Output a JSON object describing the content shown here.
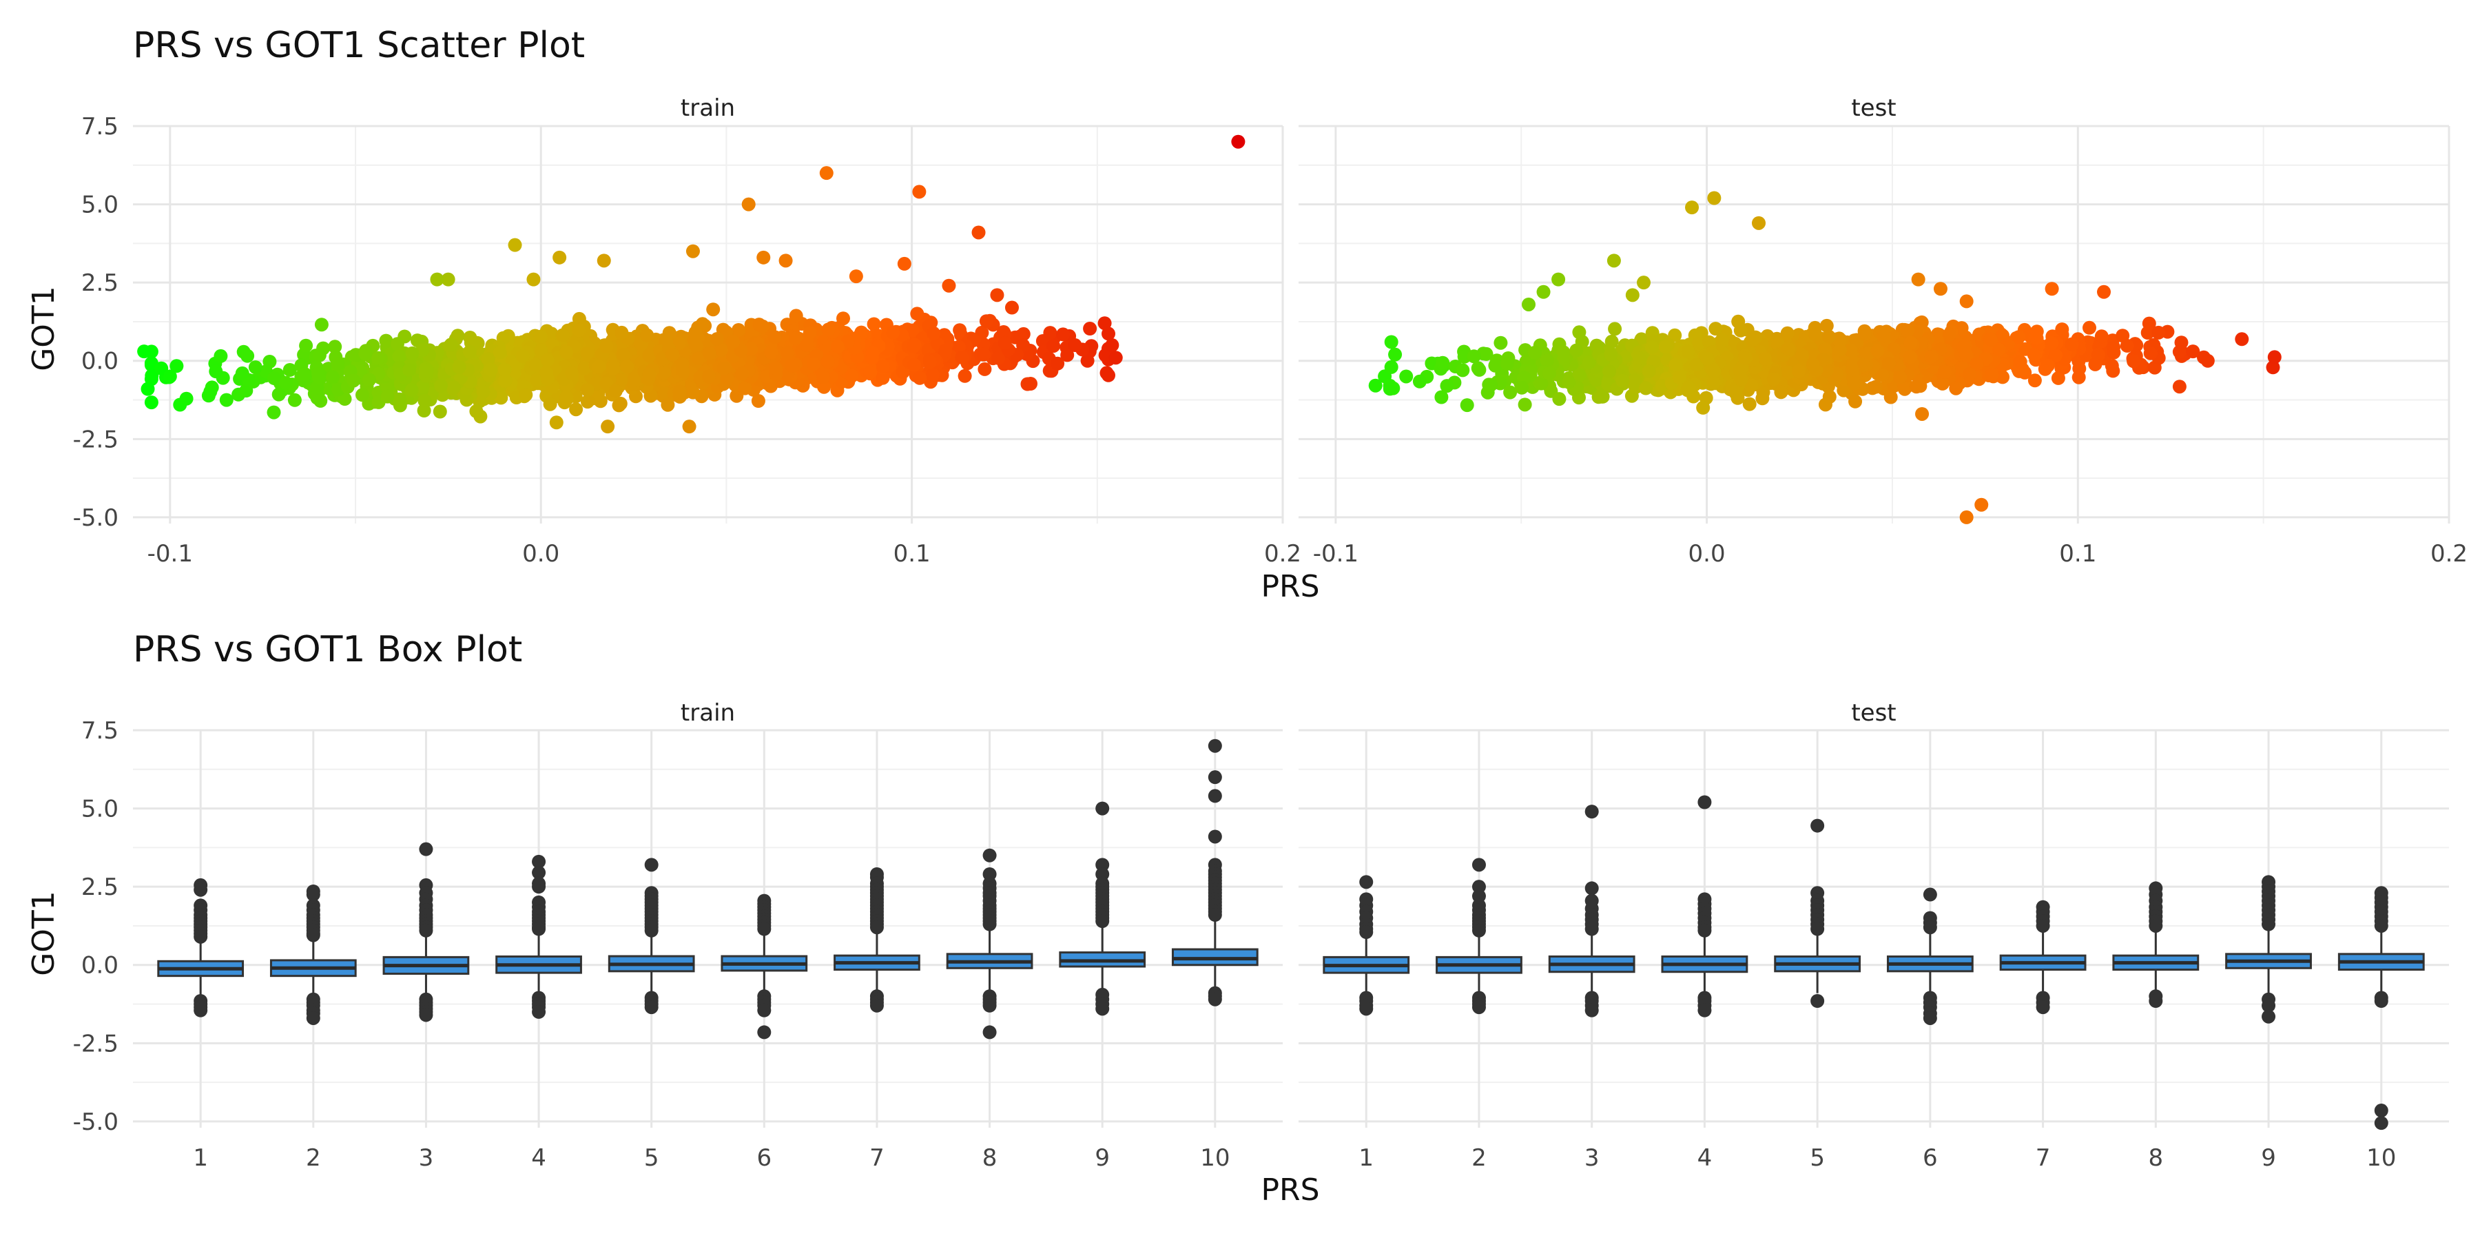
{
  "chart_data": [
    {
      "type": "scatter",
      "title": "PRS vs GOT1 Scatter Plot",
      "xlabel": "PRS",
      "ylabel": "GOT1",
      "xlim": [
        -0.11,
        0.2
      ],
      "ylim": [
        -5.2,
        7.5
      ],
      "x_ticks": [
        "-0.1",
        "0.0",
        "0.1",
        "0.2"
      ],
      "y_ticks": [
        "-5.0",
        "-2.5",
        "0.0",
        "2.5",
        "5.0",
        "7.5"
      ],
      "grid": true,
      "color_gradient": [
        "#00ff00",
        "#c8b400",
        "#ff6600",
        "#e00000"
      ],
      "panels": [
        {
          "name": "train",
          "density_model": {
            "intercept": -0.18,
            "slope": 4.5,
            "x_mean": 0.03,
            "x_sd": 0.045,
            "y_sd": 0.45,
            "n": 2600
          },
          "outliers": [
            [
              0.188,
              7.0
            ],
            [
              0.077,
              6.0
            ],
            [
              0.102,
              5.4
            ],
            [
              0.056,
              5.0
            ],
            [
              0.118,
              4.1
            ],
            [
              -0.007,
              3.7
            ],
            [
              0.041,
              3.5
            ],
            [
              0.06,
              3.3
            ],
            [
              0.066,
              3.2
            ],
            [
              0.005,
              3.3
            ],
            [
              0.017,
              3.2
            ],
            [
              0.098,
              3.1
            ],
            [
              -0.025,
              2.6
            ],
            [
              -0.028,
              2.6
            ],
            [
              -0.002,
              2.6
            ],
            [
              -0.107,
              0.3
            ],
            [
              -0.106,
              -0.9
            ],
            [
              0.018,
              -2.1
            ],
            [
              0.04,
              -2.1
            ],
            [
              0.155,
              0.1
            ],
            [
              0.154,
              0.5
            ],
            [
              0.152,
              1.2
            ],
            [
              0.144,
              0.5
            ],
            [
              0.127,
              1.7
            ],
            [
              0.123,
              2.1
            ],
            [
              0.11,
              2.4
            ],
            [
              0.085,
              2.7
            ],
            [
              -0.1,
              -0.5
            ]
          ]
        },
        {
          "name": "test",
          "density_model": {
            "intercept": -0.1,
            "slope": 3.8,
            "x_mean": 0.025,
            "x_sd": 0.04,
            "y_sd": 0.4,
            "n": 1700
          },
          "outliers": [
            [
              0.002,
              5.2
            ],
            [
              -0.004,
              4.9
            ],
            [
              0.014,
              4.4
            ],
            [
              -0.025,
              3.2
            ],
            [
              0.074,
              -4.6
            ],
            [
              0.07,
              -5.0
            ],
            [
              0.107,
              2.2
            ],
            [
              0.093,
              2.3
            ],
            [
              -0.04,
              2.6
            ],
            [
              -0.044,
              2.2
            ],
            [
              -0.048,
              1.8
            ],
            [
              -0.017,
              2.5
            ],
            [
              -0.02,
              2.1
            ],
            [
              0.057,
              2.6
            ],
            [
              0.063,
              2.3
            ],
            [
              0.07,
              1.9
            ],
            [
              0.135,
              0.0
            ],
            [
              0.131,
              0.3
            ],
            [
              -0.085,
              0.6
            ],
            [
              -0.085,
              -0.2
            ],
            [
              -0.081,
              -0.5
            ],
            [
              -0.07,
              -0.8
            ],
            [
              -0.001,
              -1.5
            ],
            [
              0.058,
              -1.7
            ],
            [
              0.032,
              -1.4
            ],
            [
              0.04,
              -1.3
            ],
            [
              -0.049,
              -1.4
            ],
            [
              0.015,
              -1.2
            ],
            [
              -0.084,
              0.2
            ]
          ]
        }
      ]
    },
    {
      "type": "box",
      "title": "PRS vs GOT1 Box Plot",
      "xlabel": "PRS",
      "ylabel": "GOT1",
      "categories": [
        "1",
        "2",
        "3",
        "4",
        "5",
        "6",
        "7",
        "8",
        "9",
        "10"
      ],
      "ylim": [
        -5.2,
        7.5
      ],
      "y_ticks": [
        "-5.0",
        "-2.5",
        "0.0",
        "2.5",
        "5.0",
        "7.5"
      ],
      "grid": true,
      "box_fill": "#3b8fd9",
      "box_stroke": "#333333",
      "panels": [
        {
          "name": "train",
          "boxes": [
            {
              "q1": -0.35,
              "median": -0.12,
              "q3": 0.12,
              "whisker_low": -1.05,
              "whisker_high": 0.78,
              "outliers": [
                2.55,
                2.4,
                1.9,
                1.75,
                1.6,
                1.5,
                1.4,
                1.3,
                1.2,
                1.1,
                1.0,
                0.9,
                -1.15,
                -1.25,
                -1.35,
                -1.45
              ]
            },
            {
              "q1": -0.35,
              "median": -0.1,
              "q3": 0.15,
              "whisker_low": -1.05,
              "whisker_high": 0.85,
              "outliers": [
                2.35,
                2.25,
                1.9,
                1.75,
                1.6,
                1.5,
                1.4,
                1.3,
                1.2,
                1.1,
                1.0,
                0.95,
                -1.1,
                -1.2,
                -1.3,
                -1.45,
                -1.55,
                -1.7
              ]
            },
            {
              "q1": -0.28,
              "median": -0.02,
              "q3": 0.25,
              "whisker_low": -1.0,
              "whisker_high": 1.0,
              "outliers": [
                3.7,
                2.55,
                2.3,
                2.1,
                1.9,
                1.75,
                1.6,
                1.5,
                1.4,
                1.3,
                1.2,
                1.1,
                -1.1,
                -1.2,
                -1.3,
                -1.4,
                -1.5,
                -1.6
              ]
            },
            {
              "q1": -0.25,
              "median": 0.0,
              "q3": 0.27,
              "whisker_low": -0.95,
              "whisker_high": 1.05,
              "outliers": [
                3.3,
                2.95,
                2.6,
                2.5,
                2.0,
                1.85,
                1.7,
                1.6,
                1.5,
                1.4,
                1.3,
                1.2,
                1.15,
                -1.05,
                -1.15,
                -1.25,
                -1.35,
                -1.5
              ]
            },
            {
              "q1": -0.2,
              "median": 0.02,
              "q3": 0.28,
              "whisker_low": -0.95,
              "whisker_high": 1.05,
              "outliers": [
                3.2,
                2.3,
                2.2,
                2.1,
                2.0,
                1.9,
                1.8,
                1.7,
                1.6,
                1.5,
                1.4,
                1.3,
                1.2,
                1.1,
                -1.05,
                -1.15,
                -1.25,
                -1.35
              ]
            },
            {
              "q1": -0.18,
              "median": 0.03,
              "q3": 0.28,
              "whisker_low": -0.9,
              "whisker_high": 1.05,
              "outliers": [
                2.05,
                1.95,
                1.85,
                1.75,
                1.65,
                1.55,
                1.45,
                1.35,
                1.25,
                1.15,
                -1.0,
                -1.1,
                -1.2,
                -1.3,
                -1.45,
                -2.15
              ]
            },
            {
              "q1": -0.15,
              "median": 0.07,
              "q3": 0.3,
              "whisker_low": -0.9,
              "whisker_high": 1.1,
              "outliers": [
                2.9,
                2.8,
                2.6,
                2.5,
                2.4,
                2.3,
                2.2,
                2.1,
                2.0,
                1.9,
                1.8,
                1.7,
                1.6,
                1.5,
                1.4,
                1.3,
                1.2,
                -1.0,
                -1.1,
                -1.2,
                -1.3
              ]
            },
            {
              "q1": -0.1,
              "median": 0.1,
              "q3": 0.35,
              "whisker_low": -0.9,
              "whisker_high": 1.2,
              "outliers": [
                3.5,
                2.9,
                2.6,
                2.45,
                2.3,
                2.2,
                2.05,
                1.9,
                1.8,
                1.7,
                1.6,
                1.5,
                1.4,
                1.3,
                -1.0,
                -1.1,
                -1.2,
                -1.3,
                -2.15
              ]
            },
            {
              "q1": -0.05,
              "median": 0.13,
              "q3": 0.4,
              "whisker_low": -0.85,
              "whisker_high": 1.3,
              "outliers": [
                5.0,
                3.2,
                2.9,
                2.6,
                2.5,
                2.4,
                2.3,
                2.2,
                2.1,
                2.0,
                1.9,
                1.8,
                1.7,
                1.6,
                1.5,
                1.4,
                -0.95,
                -1.1,
                -1.25,
                -1.4
              ]
            },
            {
              "q1": 0.0,
              "median": 0.2,
              "q3": 0.5,
              "whisker_low": -0.75,
              "whisker_high": 1.5,
              "outliers": [
                7.0,
                6.0,
                5.4,
                4.1,
                3.2,
                3.0,
                2.9,
                2.8,
                2.7,
                2.6,
                2.5,
                2.4,
                2.3,
                2.2,
                2.1,
                2.0,
                1.9,
                1.8,
                1.7,
                1.6,
                -0.9,
                -1.0,
                -1.1
              ]
            }
          ]
        },
        {
          "name": "test",
          "boxes": [
            {
              "q1": -0.25,
              "median": -0.02,
              "q3": 0.25,
              "whisker_low": -0.95,
              "whisker_high": 0.95,
              "outliers": [
                2.65,
                2.1,
                1.9,
                1.7,
                1.5,
                1.3,
                1.15,
                1.05,
                -1.05,
                -1.15,
                -1.3,
                -1.4
              ]
            },
            {
              "q1": -0.25,
              "median": 0.0,
              "q3": 0.25,
              "whisker_low": -0.95,
              "whisker_high": 0.95,
              "outliers": [
                3.2,
                2.5,
                2.2,
                1.9,
                1.75,
                1.6,
                1.5,
                1.4,
                1.3,
                1.2,
                1.1,
                -1.05,
                -1.15,
                -1.25,
                -1.35
              ]
            },
            {
              "q1": -0.22,
              "median": 0.02,
              "q3": 0.27,
              "whisker_low": -0.95,
              "whisker_high": 1.0,
              "outliers": [
                4.9,
                2.45,
                2.05,
                1.8,
                1.6,
                1.45,
                1.3,
                1.15,
                -1.05,
                -1.15,
                -1.3,
                -1.45
              ]
            },
            {
              "q1": -0.22,
              "median": 0.02,
              "q3": 0.27,
              "whisker_low": -0.95,
              "whisker_high": 1.0,
              "outliers": [
                5.2,
                2.1,
                1.95,
                1.8,
                1.65,
                1.5,
                1.35,
                1.2,
                1.1,
                -1.05,
                -1.15,
                -1.3,
                -1.45
              ]
            },
            {
              "q1": -0.2,
              "median": 0.03,
              "q3": 0.27,
              "whisker_low": -0.9,
              "whisker_high": 1.0,
              "outliers": [
                4.45,
                2.3,
                2.05,
                1.9,
                1.75,
                1.6,
                1.45,
                1.3,
                1.15,
                -1.15
              ]
            },
            {
              "q1": -0.2,
              "median": 0.03,
              "q3": 0.27,
              "whisker_low": -0.9,
              "whisker_high": 1.0,
              "outliers": [
                2.25,
                1.5,
                1.35,
                1.2,
                -1.05,
                -1.2,
                -1.35,
                -1.55,
                -1.7
              ]
            },
            {
              "q1": -0.15,
              "median": 0.07,
              "q3": 0.3,
              "whisker_low": -0.9,
              "whisker_high": 1.1,
              "outliers": [
                1.85,
                1.7,
                1.55,
                1.4,
                1.25,
                -1.05,
                -1.2,
                -1.35
              ]
            },
            {
              "q1": -0.15,
              "median": 0.07,
              "q3": 0.3,
              "whisker_low": -0.9,
              "whisker_high": 1.1,
              "outliers": [
                2.45,
                2.25,
                2.05,
                1.85,
                1.7,
                1.55,
                1.4,
                1.25,
                -1.0,
                -1.15
              ]
            },
            {
              "q1": -0.1,
              "median": 0.12,
              "q3": 0.35,
              "whisker_low": -0.95,
              "whisker_high": 1.2,
              "outliers": [
                2.65,
                2.5,
                2.35,
                2.2,
                2.05,
                1.9,
                1.75,
                1.6,
                1.45,
                1.3,
                -1.1,
                -1.3,
                -1.65
              ]
            },
            {
              "q1": -0.15,
              "median": 0.1,
              "q3": 0.35,
              "whisker_low": -0.95,
              "whisker_high": 1.2,
              "outliers": [
                2.3,
                2.15,
                2.0,
                1.85,
                1.7,
                1.55,
                1.4,
                1.25,
                -1.05,
                -1.15,
                -4.65,
                -5.05
              ]
            }
          ]
        }
      ]
    }
  ]
}
